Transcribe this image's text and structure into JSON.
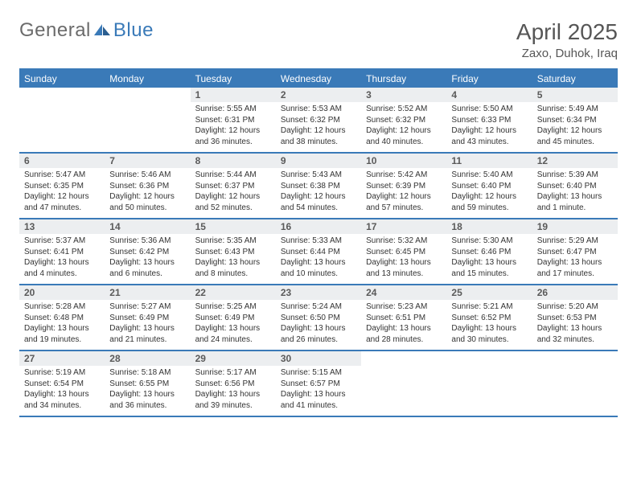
{
  "brand": {
    "word1": "General",
    "word2": "Blue"
  },
  "title": "April 2025",
  "location": "Zaxo, Duhok, Iraq",
  "colors": {
    "header_bg": "#3a7ab8",
    "header_text": "#ffffff",
    "divider": "#3a7ab8",
    "daynum_bg": "#eceef0",
    "daynum_text": "#5a5a5a",
    "body_text": "#333333",
    "title_text": "#565656",
    "logo_grey": "#6b6b6b",
    "logo_blue": "#3a7ab8",
    "page_bg": "#ffffff"
  },
  "weekdays": [
    "Sunday",
    "Monday",
    "Tuesday",
    "Wednesday",
    "Thursday",
    "Friday",
    "Saturday"
  ],
  "weeks": [
    [
      null,
      null,
      {
        "n": "1",
        "sr": "5:55 AM",
        "ss": "6:31 PM",
        "dl": "12 hours and 36 minutes."
      },
      {
        "n": "2",
        "sr": "5:53 AM",
        "ss": "6:32 PM",
        "dl": "12 hours and 38 minutes."
      },
      {
        "n": "3",
        "sr": "5:52 AM",
        "ss": "6:32 PM",
        "dl": "12 hours and 40 minutes."
      },
      {
        "n": "4",
        "sr": "5:50 AM",
        "ss": "6:33 PM",
        "dl": "12 hours and 43 minutes."
      },
      {
        "n": "5",
        "sr": "5:49 AM",
        "ss": "6:34 PM",
        "dl": "12 hours and 45 minutes."
      }
    ],
    [
      {
        "n": "6",
        "sr": "5:47 AM",
        "ss": "6:35 PM",
        "dl": "12 hours and 47 minutes."
      },
      {
        "n": "7",
        "sr": "5:46 AM",
        "ss": "6:36 PM",
        "dl": "12 hours and 50 minutes."
      },
      {
        "n": "8",
        "sr": "5:44 AM",
        "ss": "6:37 PM",
        "dl": "12 hours and 52 minutes."
      },
      {
        "n": "9",
        "sr": "5:43 AM",
        "ss": "6:38 PM",
        "dl": "12 hours and 54 minutes."
      },
      {
        "n": "10",
        "sr": "5:42 AM",
        "ss": "6:39 PM",
        "dl": "12 hours and 57 minutes."
      },
      {
        "n": "11",
        "sr": "5:40 AM",
        "ss": "6:40 PM",
        "dl": "12 hours and 59 minutes."
      },
      {
        "n": "12",
        "sr": "5:39 AM",
        "ss": "6:40 PM",
        "dl": "13 hours and 1 minute."
      }
    ],
    [
      {
        "n": "13",
        "sr": "5:37 AM",
        "ss": "6:41 PM",
        "dl": "13 hours and 4 minutes."
      },
      {
        "n": "14",
        "sr": "5:36 AM",
        "ss": "6:42 PM",
        "dl": "13 hours and 6 minutes."
      },
      {
        "n": "15",
        "sr": "5:35 AM",
        "ss": "6:43 PM",
        "dl": "13 hours and 8 minutes."
      },
      {
        "n": "16",
        "sr": "5:33 AM",
        "ss": "6:44 PM",
        "dl": "13 hours and 10 minutes."
      },
      {
        "n": "17",
        "sr": "5:32 AM",
        "ss": "6:45 PM",
        "dl": "13 hours and 13 minutes."
      },
      {
        "n": "18",
        "sr": "5:30 AM",
        "ss": "6:46 PM",
        "dl": "13 hours and 15 minutes."
      },
      {
        "n": "19",
        "sr": "5:29 AM",
        "ss": "6:47 PM",
        "dl": "13 hours and 17 minutes."
      }
    ],
    [
      {
        "n": "20",
        "sr": "5:28 AM",
        "ss": "6:48 PM",
        "dl": "13 hours and 19 minutes."
      },
      {
        "n": "21",
        "sr": "5:27 AM",
        "ss": "6:49 PM",
        "dl": "13 hours and 21 minutes."
      },
      {
        "n": "22",
        "sr": "5:25 AM",
        "ss": "6:49 PM",
        "dl": "13 hours and 24 minutes."
      },
      {
        "n": "23",
        "sr": "5:24 AM",
        "ss": "6:50 PM",
        "dl": "13 hours and 26 minutes."
      },
      {
        "n": "24",
        "sr": "5:23 AM",
        "ss": "6:51 PM",
        "dl": "13 hours and 28 minutes."
      },
      {
        "n": "25",
        "sr": "5:21 AM",
        "ss": "6:52 PM",
        "dl": "13 hours and 30 minutes."
      },
      {
        "n": "26",
        "sr": "5:20 AM",
        "ss": "6:53 PM",
        "dl": "13 hours and 32 minutes."
      }
    ],
    [
      {
        "n": "27",
        "sr": "5:19 AM",
        "ss": "6:54 PM",
        "dl": "13 hours and 34 minutes."
      },
      {
        "n": "28",
        "sr": "5:18 AM",
        "ss": "6:55 PM",
        "dl": "13 hours and 36 minutes."
      },
      {
        "n": "29",
        "sr": "5:17 AM",
        "ss": "6:56 PM",
        "dl": "13 hours and 39 minutes."
      },
      {
        "n": "30",
        "sr": "5:15 AM",
        "ss": "6:57 PM",
        "dl": "13 hours and 41 minutes."
      },
      null,
      null,
      null
    ]
  ],
  "labels": {
    "sunrise": "Sunrise: ",
    "sunset": "Sunset: ",
    "daylight": "Daylight: "
  }
}
